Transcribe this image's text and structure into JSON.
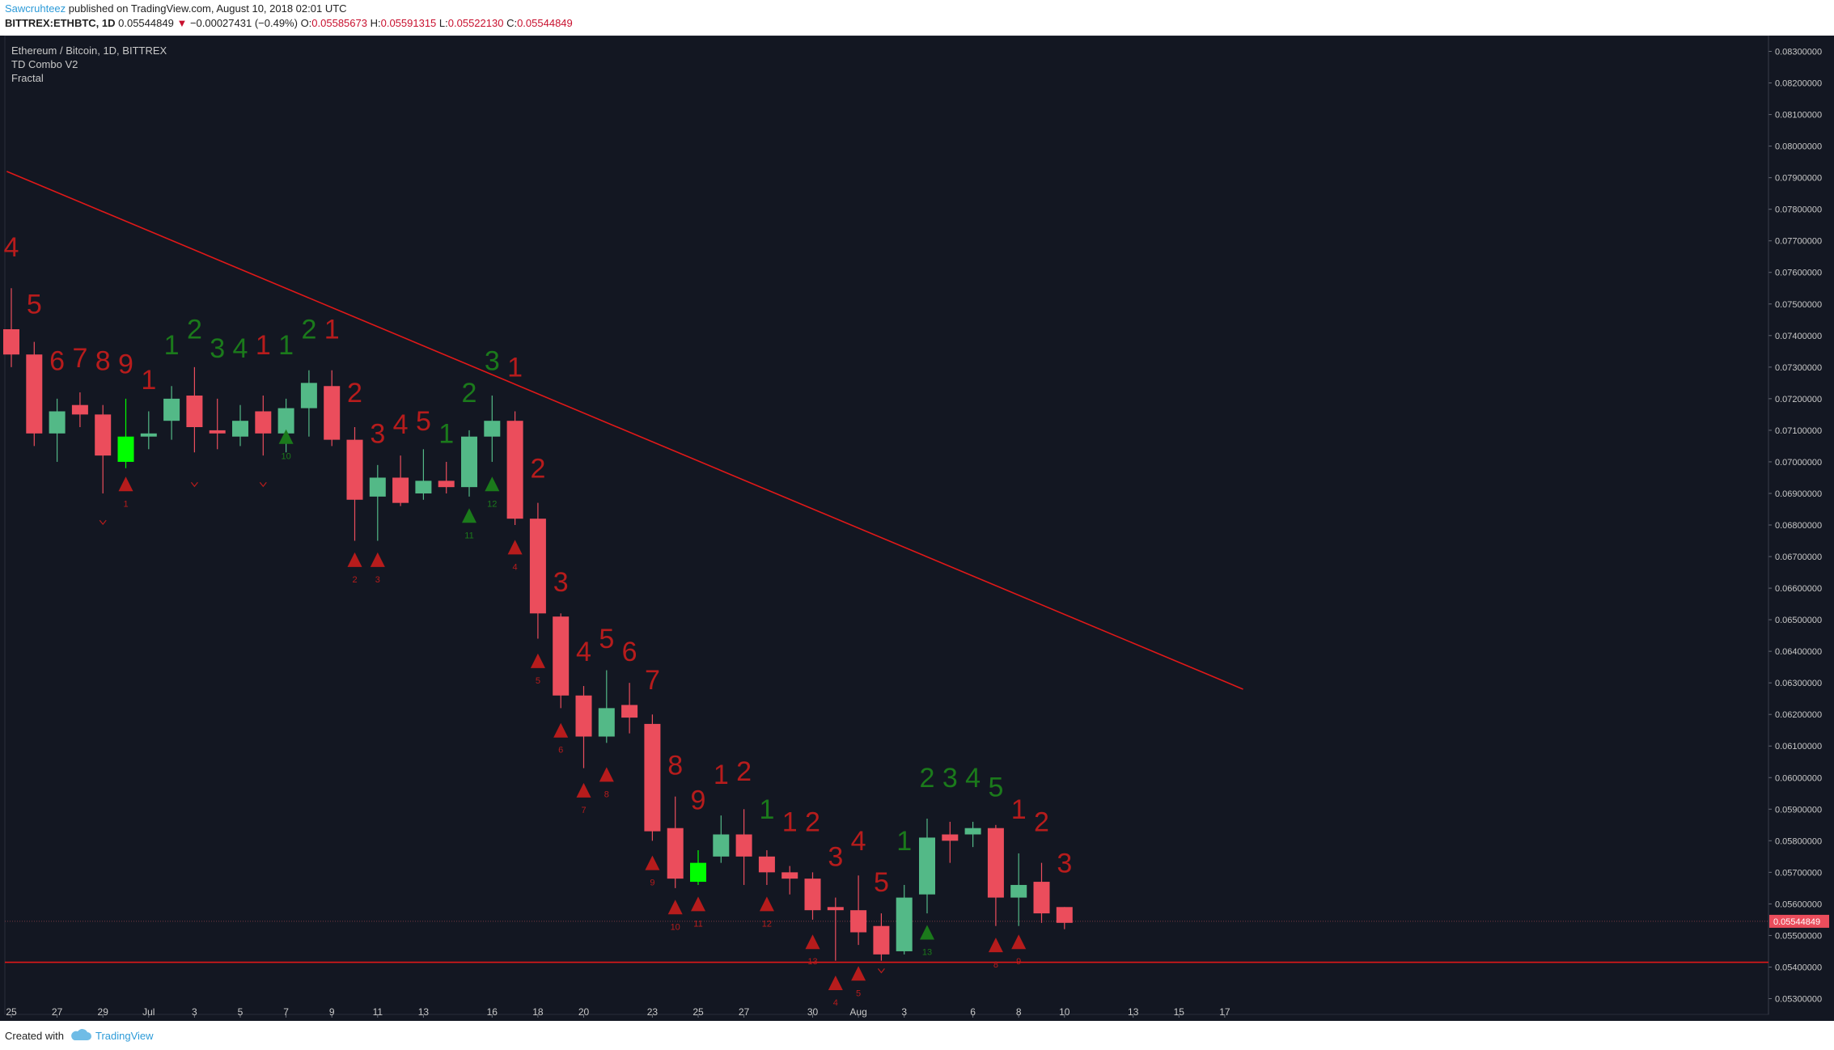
{
  "header": {
    "author": "Sawcruhteez",
    "published_text": "published on TradingView.com, August 10, 2018 02:01 UTC",
    "symbol": "BITTREX:ETHBTC, 1D",
    "last": "0.05544849",
    "change_arrow": "▼",
    "change": "−0.00027431 (−0.49%)",
    "o_label": "O:",
    "o_value": "0.05585673",
    "h_label": "H:",
    "h_value": "0.05591315",
    "l_label": "L:",
    "l_value": "0.05522130",
    "c_label": "C:",
    "c_value": "0.05544849"
  },
  "legend": {
    "line1": "Ethereum / Bitcoin, 1D, BITTREX",
    "line2": "TD Combo V2",
    "line3": "Fractal"
  },
  "footer": {
    "created_with": "Created with",
    "brand": "TradingView"
  },
  "colors": {
    "background": "#131722",
    "up": "#53b987",
    "down": "#eb4d5c",
    "highlight": "#00ff00",
    "td_sell": "#b71c1c",
    "td_buy": "#1b7a1b",
    "trendline": "#e01818",
    "text": "#c8c8c8"
  },
  "chart_data": {
    "type": "candlestick",
    "title": "Ethereum / Bitcoin, 1D, BITTREX",
    "ylim": [
      0.0525,
      0.0835
    ],
    "y_ticks": [
      "0.05300000",
      "0.05400000",
      "0.05500000",
      "0.05600000",
      "0.05700000",
      "0.05800000",
      "0.05900000",
      "0.06000000",
      "0.06100000",
      "0.06200000",
      "0.06300000",
      "0.06400000",
      "0.06500000",
      "0.06600000",
      "0.06700000",
      "0.06800000",
      "0.06900000",
      "0.07000000",
      "0.07100000",
      "0.07200000",
      "0.07300000",
      "0.07400000",
      "0.07500000",
      "0.07600000",
      "0.07700000",
      "0.07800000",
      "0.07900000",
      "0.08000000",
      "0.08100000",
      "0.08200000",
      "0.08300000"
    ],
    "x_ticks": [
      {
        "day": 0,
        "label": "25"
      },
      {
        "day": 2,
        "label": "27"
      },
      {
        "day": 4,
        "label": "29"
      },
      {
        "day": 6,
        "label": "Jul"
      },
      {
        "day": 8,
        "label": "3"
      },
      {
        "day": 10,
        "label": "5"
      },
      {
        "day": 12,
        "label": "7"
      },
      {
        "day": 14,
        "label": "9"
      },
      {
        "day": 16,
        "label": "11"
      },
      {
        "day": 18,
        "label": "13"
      },
      {
        "day": 21,
        "label": "16"
      },
      {
        "day": 23,
        "label": "18"
      },
      {
        "day": 25,
        "label": "20"
      },
      {
        "day": 28,
        "label": "23"
      },
      {
        "day": 30,
        "label": "25"
      },
      {
        "day": 32,
        "label": "27"
      },
      {
        "day": 35,
        "label": "30"
      },
      {
        "day": 37,
        "label": "Aug"
      },
      {
        "day": 39,
        "label": "3"
      },
      {
        "day": 42,
        "label": "6"
      },
      {
        "day": 44,
        "label": "8"
      },
      {
        "day": 46,
        "label": "10"
      },
      {
        "day": 49,
        "label": "13"
      },
      {
        "day": 51,
        "label": "15"
      },
      {
        "day": 53,
        "label": "17"
      }
    ],
    "last_price": "0.05544849",
    "candles": [
      {
        "o": 0.0742,
        "h": 0.0755,
        "l": 0.073,
        "c": 0.0734
      },
      {
        "o": 0.0734,
        "h": 0.0738,
        "l": 0.0705,
        "c": 0.0709
      },
      {
        "o": 0.0709,
        "h": 0.072,
        "l": 0.07,
        "c": 0.0716
      },
      {
        "o": 0.0718,
        "h": 0.0722,
        "l": 0.0711,
        "c": 0.0715
      },
      {
        "o": 0.0715,
        "h": 0.0718,
        "l": 0.069,
        "c": 0.0702
      },
      {
        "o": 0.07,
        "h": 0.072,
        "l": 0.0698,
        "c": 0.0708,
        "hl": true
      },
      {
        "o": 0.0708,
        "h": 0.0716,
        "l": 0.0704,
        "c": 0.0709
      },
      {
        "o": 0.0713,
        "h": 0.0724,
        "l": 0.0707,
        "c": 0.072
      },
      {
        "o": 0.0721,
        "h": 0.073,
        "l": 0.0703,
        "c": 0.0711
      },
      {
        "o": 0.071,
        "h": 0.072,
        "l": 0.0704,
        "c": 0.0709
      },
      {
        "o": 0.0708,
        "h": 0.0718,
        "l": 0.0705,
        "c": 0.0713
      },
      {
        "o": 0.0716,
        "h": 0.0721,
        "l": 0.0702,
        "c": 0.0709
      },
      {
        "o": 0.0709,
        "h": 0.072,
        "l": 0.0703,
        "c": 0.0717
      },
      {
        "o": 0.0717,
        "h": 0.0729,
        "l": 0.0708,
        "c": 0.0725
      },
      {
        "o": 0.0724,
        "h": 0.0729,
        "l": 0.0705,
        "c": 0.0707
      },
      {
        "o": 0.0707,
        "h": 0.0711,
        "l": 0.0675,
        "c": 0.0688
      },
      {
        "o": 0.0689,
        "h": 0.0699,
        "l": 0.0675,
        "c": 0.0695
      },
      {
        "o": 0.0695,
        "h": 0.0702,
        "l": 0.0686,
        "c": 0.0687
      },
      {
        "o": 0.069,
        "h": 0.0704,
        "l": 0.0688,
        "c": 0.0694
      },
      {
        "o": 0.0694,
        "h": 0.07,
        "l": 0.069,
        "c": 0.0692
      },
      {
        "o": 0.0692,
        "h": 0.071,
        "l": 0.0689,
        "c": 0.0708
      },
      {
        "o": 0.0708,
        "h": 0.0721,
        "l": 0.07,
        "c": 0.0713
      },
      {
        "o": 0.0713,
        "h": 0.0716,
        "l": 0.068,
        "c": 0.0682
      },
      {
        "o": 0.0682,
        "h": 0.0687,
        "l": 0.0644,
        "c": 0.0652
      },
      {
        "o": 0.0651,
        "h": 0.0652,
        "l": 0.0622,
        "c": 0.0626
      },
      {
        "o": 0.0626,
        "h": 0.0629,
        "l": 0.0603,
        "c": 0.0613
      },
      {
        "o": 0.0613,
        "h": 0.0634,
        "l": 0.0611,
        "c": 0.0622
      },
      {
        "o": 0.0623,
        "h": 0.063,
        "l": 0.0614,
        "c": 0.0619
      },
      {
        "o": 0.0617,
        "h": 0.062,
        "l": 0.058,
        "c": 0.0583
      },
      {
        "o": 0.0584,
        "h": 0.0594,
        "l": 0.0565,
        "c": 0.0568
      },
      {
        "o": 0.0567,
        "h": 0.0577,
        "l": 0.0566,
        "c": 0.0573,
        "hl": true
      },
      {
        "o": 0.0575,
        "h": 0.0588,
        "l": 0.0573,
        "c": 0.0582
      },
      {
        "o": 0.0582,
        "h": 0.059,
        "l": 0.0566,
        "c": 0.0575
      },
      {
        "o": 0.0575,
        "h": 0.0577,
        "l": 0.0566,
        "c": 0.057
      },
      {
        "o": 0.057,
        "h": 0.0572,
        "l": 0.0563,
        "c": 0.0568
      },
      {
        "o": 0.0568,
        "h": 0.057,
        "l": 0.0555,
        "c": 0.0558
      },
      {
        "o": 0.0559,
        "h": 0.0562,
        "l": 0.0542,
        "c": 0.0558
      },
      {
        "o": 0.0558,
        "h": 0.0569,
        "l": 0.0547,
        "c": 0.0551
      },
      {
        "o": 0.0553,
        "h": 0.0557,
        "l": 0.0542,
        "c": 0.0544
      },
      {
        "o": 0.0545,
        "h": 0.0566,
        "l": 0.0544,
        "c": 0.0562
      },
      {
        "o": 0.0563,
        "h": 0.0587,
        "l": 0.0557,
        "c": 0.0581
      },
      {
        "o": 0.0582,
        "h": 0.0586,
        "l": 0.0573,
        "c": 0.058
      },
      {
        "o": 0.0582,
        "h": 0.0586,
        "l": 0.0578,
        "c": 0.0584
      },
      {
        "o": 0.0584,
        "h": 0.0585,
        "l": 0.0553,
        "c": 0.0562
      },
      {
        "o": 0.0562,
        "h": 0.0576,
        "l": 0.0553,
        "c": 0.0566
      },
      {
        "o": 0.0567,
        "h": 0.0573,
        "l": 0.0554,
        "c": 0.0557
      },
      {
        "o": 0.0559,
        "h": 0.0559,
        "l": 0.0552,
        "c": 0.0554
      }
    ],
    "td_labels": [
      {
        "d": 0,
        "n": "4",
        "s": "sell",
        "p": 0.0765
      },
      {
        "d": 1,
        "n": "5",
        "s": "sell",
        "p": 0.0747
      },
      {
        "d": 2,
        "n": "6",
        "s": "sell",
        "p": 0.0729
      },
      {
        "d": 3,
        "n": "7",
        "s": "sell",
        "p": 0.073
      },
      {
        "d": 4,
        "n": "8",
        "s": "sell",
        "p": 0.0729
      },
      {
        "d": 5,
        "n": "9",
        "s": "sell",
        "p": 0.0728
      },
      {
        "d": 6,
        "n": "1",
        "s": "sell",
        "p": 0.0723
      },
      {
        "d": 7,
        "n": "1",
        "s": "buy",
        "p": 0.0734
      },
      {
        "d": 8,
        "n": "2",
        "s": "buy",
        "p": 0.0739
      },
      {
        "d": 9,
        "n": "3",
        "s": "buy",
        "p": 0.0733
      },
      {
        "d": 10,
        "n": "4",
        "s": "buy",
        "p": 0.0733
      },
      {
        "d": 11,
        "n": "1",
        "s": "sell",
        "p": 0.0734
      },
      {
        "d": 12,
        "n": "1",
        "s": "buy",
        "p": 0.0734
      },
      {
        "d": 13,
        "n": "2",
        "s": "buy",
        "p": 0.0739
      },
      {
        "d": 14,
        "n": "1",
        "s": "sell",
        "p": 0.0739
      },
      {
        "d": 15,
        "n": "2",
        "s": "sell",
        "p": 0.0719
      },
      {
        "d": 16,
        "n": "3",
        "s": "sell",
        "p": 0.0706
      },
      {
        "d": 17,
        "n": "4",
        "s": "sell",
        "p": 0.0709
      },
      {
        "d": 18,
        "n": "5",
        "s": "sell",
        "p": 0.071
      },
      {
        "d": 19,
        "n": "1",
        "s": "buy",
        "p": 0.0706
      },
      {
        "d": 20,
        "n": "2",
        "s": "buy",
        "p": 0.0719
      },
      {
        "d": 21,
        "n": "3",
        "s": "buy",
        "p": 0.0729
      },
      {
        "d": 22,
        "n": "1",
        "s": "sell",
        "p": 0.0727
      },
      {
        "d": 23,
        "n": "2",
        "s": "sell",
        "p": 0.0695
      },
      {
        "d": 24,
        "n": "3",
        "s": "sell",
        "p": 0.0659
      },
      {
        "d": 25,
        "n": "4",
        "s": "sell",
        "p": 0.0637
      },
      {
        "d": 26,
        "n": "5",
        "s": "sell",
        "p": 0.0641
      },
      {
        "d": 27,
        "n": "6",
        "s": "sell",
        "p": 0.0637
      },
      {
        "d": 28,
        "n": "7",
        "s": "sell",
        "p": 0.0628
      },
      {
        "d": 29,
        "n": "8",
        "s": "sell",
        "p": 0.0601
      },
      {
        "d": 30,
        "n": "9",
        "s": "sell",
        "p": 0.059
      },
      {
        "d": 31,
        "n": "1",
        "s": "sell",
        "p": 0.0598
      },
      {
        "d": 32,
        "n": "2",
        "s": "sell",
        "p": 0.0599
      },
      {
        "d": 33,
        "n": "1",
        "s": "buy",
        "p": 0.0587
      },
      {
        "d": 34,
        "n": "1",
        "s": "sell",
        "p": 0.0583
      },
      {
        "d": 35,
        "n": "2",
        "s": "sell",
        "p": 0.0583
      },
      {
        "d": 36,
        "n": "3",
        "s": "sell",
        "p": 0.0572
      },
      {
        "d": 37,
        "n": "4",
        "s": "sell",
        "p": 0.0577
      },
      {
        "d": 38,
        "n": "5",
        "s": "sell",
        "p": 0.0564
      },
      {
        "d": 39,
        "n": "1",
        "s": "buy",
        "p": 0.0577
      },
      {
        "d": 40,
        "n": "2",
        "s": "buy",
        "p": 0.0597
      },
      {
        "d": 41,
        "n": "3",
        "s": "buy",
        "p": 0.0597
      },
      {
        "d": 42,
        "n": "4",
        "s": "buy",
        "p": 0.0597
      },
      {
        "d": 43,
        "n": "5",
        "s": "buy",
        "p": 0.0594
      },
      {
        "d": 44,
        "n": "1",
        "s": "sell",
        "p": 0.0587
      },
      {
        "d": 45,
        "n": "2",
        "s": "sell",
        "p": 0.0583
      },
      {
        "d": 46,
        "n": "3",
        "s": "sell",
        "p": 0.057
      }
    ],
    "fractal_markers": [
      {
        "d": 5,
        "s": "sell",
        "p": 0.0693,
        "n": "1"
      },
      {
        "d": 12,
        "s": "buy",
        "p": 0.0708,
        "n": "10"
      },
      {
        "d": 15,
        "s": "sell",
        "p": 0.0669,
        "n": "2"
      },
      {
        "d": 16,
        "s": "sell",
        "p": 0.0669,
        "n": "3"
      },
      {
        "d": 20,
        "s": "buy",
        "p": 0.0683,
        "n": "11"
      },
      {
        "d": 21,
        "s": "buy",
        "p": 0.0693,
        "n": "12"
      },
      {
        "d": 22,
        "s": "sell",
        "p": 0.0673,
        "n": "4"
      },
      {
        "d": 23,
        "s": "sell",
        "p": 0.0637,
        "n": "5"
      },
      {
        "d": 24,
        "s": "sell",
        "p": 0.0615,
        "n": "6"
      },
      {
        "d": 25,
        "s": "sell",
        "p": 0.0596,
        "n": "7"
      },
      {
        "d": 26,
        "s": "sell",
        "p": 0.0601,
        "n": "8"
      },
      {
        "d": 28,
        "s": "sell",
        "p": 0.0573,
        "n": "9"
      },
      {
        "d": 29,
        "s": "sell",
        "p": 0.0559,
        "n": "10"
      },
      {
        "d": 30,
        "s": "sell",
        "p": 0.056,
        "n": "11"
      },
      {
        "d": 33,
        "s": "sell",
        "p": 0.056,
        "n": "12"
      },
      {
        "d": 35,
        "s": "sell",
        "p": 0.0548,
        "n": "13"
      },
      {
        "d": 36,
        "s": "sell",
        "p": 0.0535,
        "n": "4"
      },
      {
        "d": 37,
        "s": "sell",
        "p": 0.0538,
        "n": "5"
      },
      {
        "d": 40,
        "s": "buy",
        "p": 0.0551,
        "n": "13"
      },
      {
        "d": 43,
        "s": "sell",
        "p": 0.0547,
        "n": "8"
      },
      {
        "d": 44,
        "s": "sell",
        "p": 0.0548,
        "n": "9"
      }
    ],
    "small_carets": [
      {
        "d": 4,
        "p": 0.0681
      },
      {
        "d": 8,
        "p": 0.0693
      },
      {
        "d": 11,
        "p": 0.0693
      },
      {
        "d": 38,
        "p": 0.0539
      }
    ],
    "trendline": {
      "d1": -0.2,
      "p1": 0.0792,
      "d2": 53.8,
      "p2": 0.0628
    },
    "support": 0.05415
  }
}
